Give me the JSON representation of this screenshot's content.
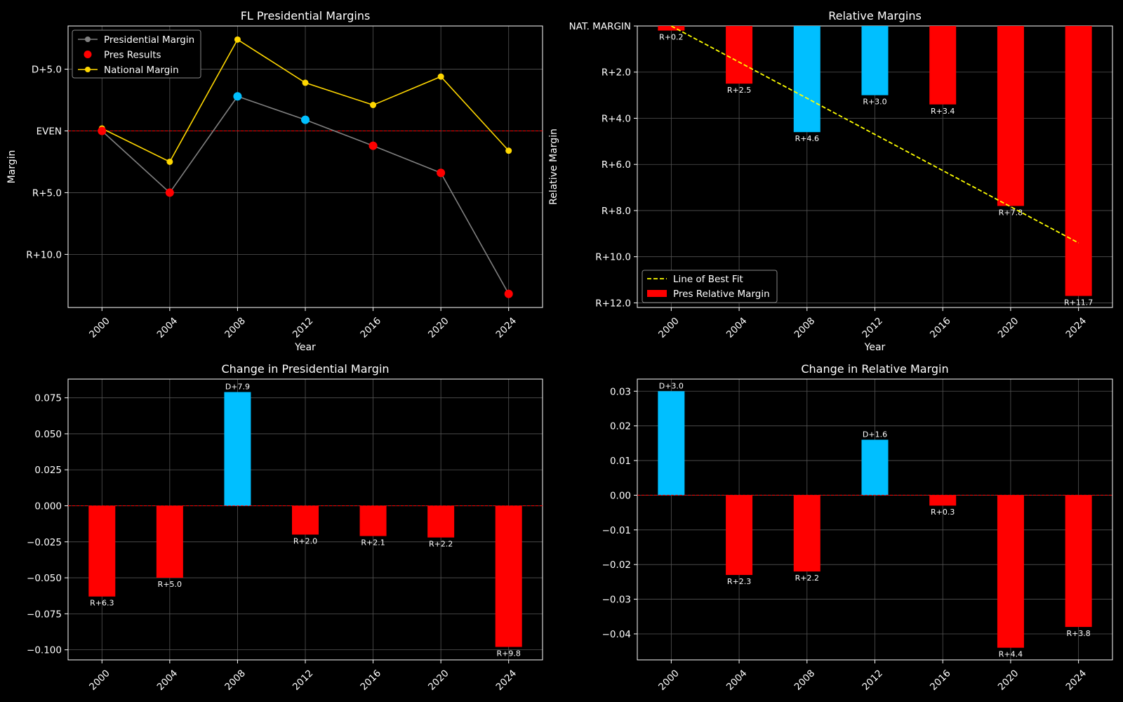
{
  "chart_data": [
    {
      "id": "p1",
      "type": "line",
      "title": "FL Presidential Margins",
      "xlabel": "Year",
      "ylabel": "Margin",
      "x": [
        2000,
        2004,
        2008,
        2012,
        2016,
        2020,
        2024
      ],
      "xticks": [
        "2000",
        "2004",
        "2008",
        "2012",
        "2016",
        "2020",
        "2024"
      ],
      "ylim": [
        -14.3,
        8.5
      ],
      "yticks": [
        {
          "v": 5,
          "label": "D+5.0"
        },
        {
          "v": 0,
          "label": "EVEN"
        },
        {
          "v": -5,
          "label": "R+5.0"
        },
        {
          "v": -10,
          "label": "R+10.0"
        }
      ],
      "grid": true,
      "legend_position": "top-left",
      "series": [
        {
          "name": "Presidential Margin",
          "values": [
            0.0,
            -5.0,
            2.8,
            0.9,
            -1.2,
            -3.4,
            -13.2
          ],
          "color": "#808080"
        },
        {
          "name": "Pres Results",
          "values": [
            0.0,
            -5.0,
            2.8,
            0.9,
            -1.2,
            -3.4,
            -13.2
          ],
          "marker_colors": [
            "#ff0000",
            "#ff0000",
            "#00bfff",
            "#00bfff",
            "#ff0000",
            "#ff0000",
            "#ff0000"
          ]
        },
        {
          "name": "National Margin",
          "values": [
            0.2,
            -2.5,
            7.4,
            3.9,
            2.1,
            4.4,
            -1.6
          ],
          "color": "#ffd700"
        }
      ],
      "reference_line": {
        "value": 0,
        "color": "#ff0000"
      }
    },
    {
      "id": "p2",
      "type": "bar",
      "title": "Relative Margins",
      "xlabel": "Year",
      "ylabel": "Relative Margin",
      "categories": [
        "2000",
        "2004",
        "2008",
        "2012",
        "2016",
        "2020",
        "2024"
      ],
      "values": [
        0.2,
        2.5,
        4.6,
        3.0,
        3.4,
        7.8,
        11.7
      ],
      "bar_colors": [
        "#ff0000",
        "#ff0000",
        "#00bfff",
        "#00bfff",
        "#ff0000",
        "#ff0000",
        "#ff0000"
      ],
      "labels": [
        "R+0.2",
        "R+2.5",
        "R+4.6",
        "R+3.0",
        "R+3.4",
        "R+7.8",
        "R+11.7"
      ],
      "ylim": [
        0,
        12.2
      ],
      "yticks": [
        {
          "v": 0,
          "label": "NAT. MARGIN"
        },
        {
          "v": 2,
          "label": "R+2.0"
        },
        {
          "v": 4,
          "label": "R+4.0"
        },
        {
          "v": 6,
          "label": "R+6.0"
        },
        {
          "v": 8,
          "label": "R+8.0"
        },
        {
          "v": 10,
          "label": "R+10.0"
        },
        {
          "v": 12,
          "label": "R+12.0"
        }
      ],
      "best_fit": {
        "name": "Line of Best Fit",
        "start": 0.0,
        "end": 9.4,
        "color": "#ffff00"
      },
      "bar_legend_name": "Pres Relative Margin",
      "grid": true,
      "legend_position": "bottom-left"
    },
    {
      "id": "p3",
      "type": "bar",
      "title": "Change in Presidential Margin",
      "categories": [
        "2000",
        "2004",
        "2008",
        "2012",
        "2016",
        "2020",
        "2024"
      ],
      "values": [
        -0.063,
        -0.05,
        0.079,
        -0.02,
        -0.021,
        -0.022,
        -0.098
      ],
      "bar_colors": [
        "#ff0000",
        "#ff0000",
        "#00bfff",
        "#ff0000",
        "#ff0000",
        "#ff0000",
        "#ff0000"
      ],
      "labels": [
        "R+6.3",
        "R+5.0",
        "D+7.9",
        "R+2.0",
        "R+2.1",
        "R+2.2",
        "R+9.8"
      ],
      "ylim": [
        -0.107,
        0.088
      ],
      "yticks": [
        {
          "v": 0.075,
          "label": "0.075"
        },
        {
          "v": 0.05,
          "label": "0.050"
        },
        {
          "v": 0.025,
          "label": "0.025"
        },
        {
          "v": 0,
          "label": "0.000"
        },
        {
          "v": -0.025,
          "label": "−0.025"
        },
        {
          "v": -0.05,
          "label": "−0.050"
        },
        {
          "v": -0.075,
          "label": "−0.075"
        },
        {
          "v": -0.1,
          "label": "−0.100"
        }
      ],
      "grid": true
    },
    {
      "id": "p4",
      "type": "bar",
      "title": "Change in Relative Margin",
      "categories": [
        "2000",
        "2004",
        "2008",
        "2012",
        "2016",
        "2020",
        "2024"
      ],
      "values": [
        0.03,
        -0.023,
        -0.022,
        0.016,
        -0.003,
        -0.044,
        -0.038
      ],
      "bar_colors": [
        "#00bfff",
        "#ff0000",
        "#ff0000",
        "#00bfff",
        "#ff0000",
        "#ff0000",
        "#ff0000"
      ],
      "labels": [
        "D+3.0",
        "R+2.3",
        "R+2.2",
        "D+1.6",
        "R+0.3",
        "R+4.4",
        "R+3.8"
      ],
      "ylim": [
        -0.0475,
        0.0335
      ],
      "yticks": [
        {
          "v": 0.03,
          "label": "0.03"
        },
        {
          "v": 0.02,
          "label": "0.02"
        },
        {
          "v": 0.01,
          "label": "0.01"
        },
        {
          "v": 0,
          "label": "0.00"
        },
        {
          "v": -0.01,
          "label": "−0.01"
        },
        {
          "v": -0.02,
          "label": "−0.02"
        },
        {
          "v": -0.03,
          "label": "−0.03"
        },
        {
          "v": -0.04,
          "label": "−0.04"
        }
      ],
      "grid": true
    }
  ]
}
